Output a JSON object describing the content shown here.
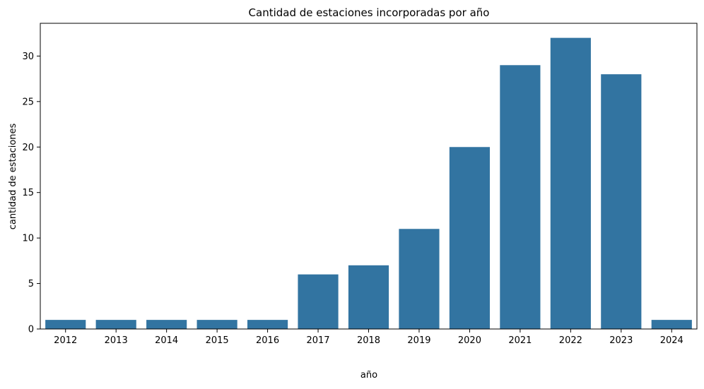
{
  "chart_data": {
    "type": "bar",
    "title": "Cantidad de estaciones incorporadas por año",
    "xlabel": "año",
    "ylabel": "cantidad de estaciones",
    "categories": [
      "2012",
      "2013",
      "2014",
      "2015",
      "2016",
      "2017",
      "2018",
      "2019",
      "2020",
      "2021",
      "2022",
      "2023",
      "2024"
    ],
    "values": [
      1,
      1,
      1,
      1,
      1,
      6,
      7,
      11,
      20,
      29,
      32,
      28,
      1
    ],
    "ylim": [
      0,
      33.6
    ],
    "yticks": [
      0,
      5,
      10,
      15,
      20,
      25,
      30
    ],
    "grid": false,
    "bar_color": "#3274a1"
  }
}
